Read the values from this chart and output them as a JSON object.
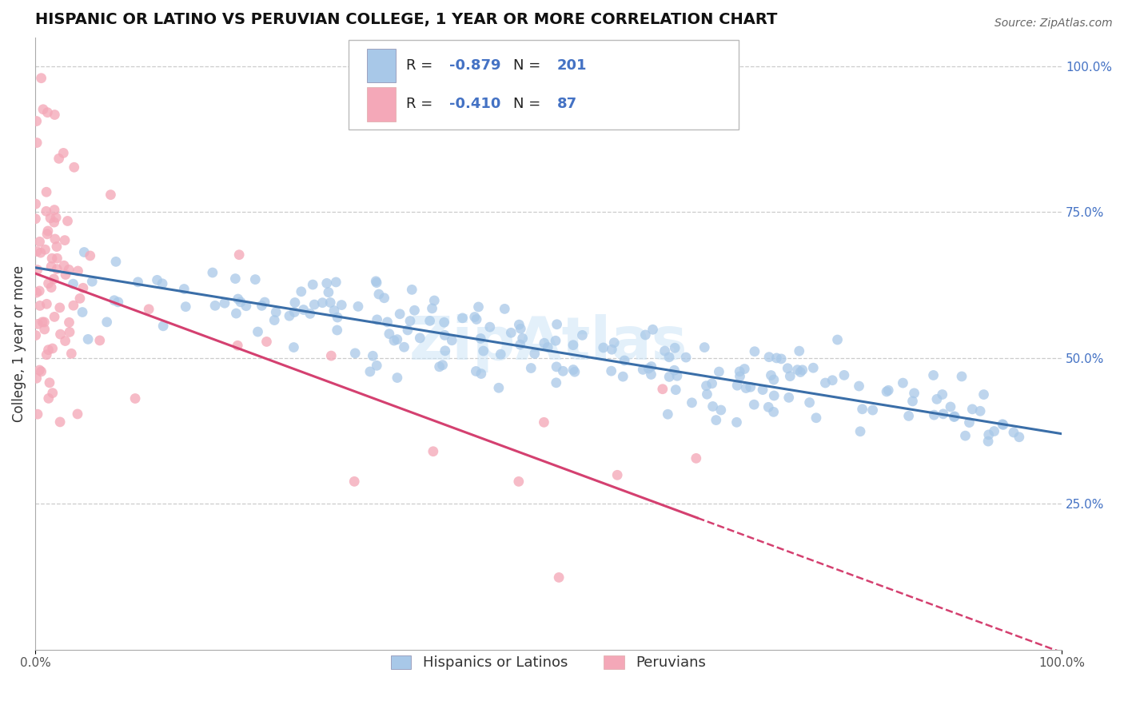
{
  "title": "HISPANIC OR LATINO VS PERUVIAN COLLEGE, 1 YEAR OR MORE CORRELATION CHART",
  "source_text": "Source: ZipAtlas.com",
  "ylabel": "College, 1 year or more",
  "xlim": [
    0.0,
    1.0
  ],
  "ylim": [
    0.0,
    1.05
  ],
  "blue_R": -0.879,
  "blue_N": 201,
  "pink_R": -0.41,
  "pink_N": 87,
  "blue_color": "#a8c8e8",
  "blue_line_color": "#3a6ea8",
  "pink_color": "#f4a8b8",
  "pink_line_color": "#d44070",
  "legend_blue_label": "Hispanics or Latinos",
  "legend_pink_label": "Peruvians",
  "watermark": "ZipAtlas",
  "title_fontsize": 14,
  "axis_label_fontsize": 12,
  "tick_fontsize": 11,
  "right_label_color": "#4472c4",
  "grid_color": "#cccccc",
  "blue_intercept": 0.655,
  "blue_slope": -0.285,
  "pink_intercept": 0.645,
  "pink_slope": -0.65
}
